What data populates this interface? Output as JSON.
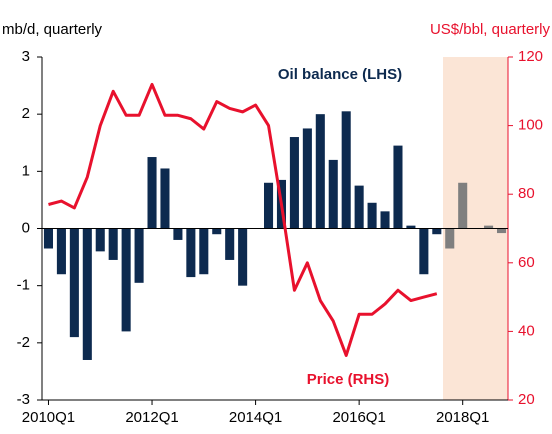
{
  "chart_data": {
    "type": "bar_line",
    "y_label": "mb/d, quarterly",
    "y2_label": "US$/bbl, quarterly",
    "annotations": [
      "Oil balance (LHS)",
      "Price (RHS)"
    ],
    "categories": [
      "2010Q1",
      null,
      null,
      null,
      null,
      null,
      null,
      null,
      "2012Q1",
      null,
      null,
      null,
      null,
      null,
      null,
      null,
      "2014Q1",
      null,
      null,
      null,
      null,
      null,
      null,
      null,
      "2016Q1",
      null,
      null,
      null,
      null,
      null,
      null,
      null,
      "2018Q1",
      null,
      null,
      null
    ],
    "series": [
      {
        "name": "Oil balance (LHS)",
        "type": "bar",
        "color": "#0d2a4f",
        "colors": [
          "#0d2a4f",
          "#0d2a4f",
          "#0d2a4f",
          "#0d2a4f",
          "#0d2a4f",
          "#0d2a4f",
          "#0d2a4f",
          "#0d2a4f",
          "#0d2a4f",
          "#0d2a4f",
          "#0d2a4f",
          "#0d2a4f",
          "#0d2a4f",
          "#0d2a4f",
          "#0d2a4f",
          "#0d2a4f",
          "#0d2a4f",
          "#0d2a4f",
          "#0d2a4f",
          "#0d2a4f",
          "#0d2a4f",
          "#0d2a4f",
          "#0d2a4f",
          "#0d2a4f",
          "#0d2a4f",
          "#0d2a4f",
          "#0d2a4f",
          "#0d2a4f",
          "#0d2a4f",
          "#0d2a4f",
          "#0d2a4f",
          "#7f7f7f",
          "#7f7f7f",
          "#7f7f7f",
          "#7f7f7f",
          "#7f7f7f"
        ],
        "values": [
          -0.35,
          -0.8,
          -1.9,
          -2.3,
          -0.4,
          -0.55,
          -1.8,
          -0.95,
          1.25,
          1.05,
          -0.2,
          -0.85,
          -0.8,
          -0.1,
          -0.55,
          -1.0,
          0.0,
          0.8,
          0.85,
          1.6,
          1.75,
          2.0,
          1.2,
          2.05,
          0.75,
          0.45,
          0.3,
          1.45,
          0.05,
          -0.8,
          -0.1,
          -0.35,
          0.8,
          0.0,
          0.05,
          -0.08
        ]
      },
      {
        "name": "Price (RHS)",
        "type": "line",
        "axis": "y2",
        "color": "#e8112d",
        "values": [
          77,
          78,
          76,
          85,
          100,
          110,
          103,
          103,
          112,
          103,
          103,
          102,
          99,
          107,
          105,
          104,
          106,
          100,
          77,
          52,
          60,
          49,
          43,
          33,
          45,
          45,
          48,
          52,
          49,
          50,
          51,
          null,
          null,
          null,
          null,
          null
        ]
      }
    ],
    "ylim": [
      -3,
      3
    ],
    "yticks": [
      -3,
      -2,
      -1,
      0,
      1,
      2,
      3
    ],
    "y2lim": [
      20,
      120
    ],
    "y2ticks": [
      20,
      40,
      60,
      80,
      100,
      120
    ],
    "grid": false
  }
}
